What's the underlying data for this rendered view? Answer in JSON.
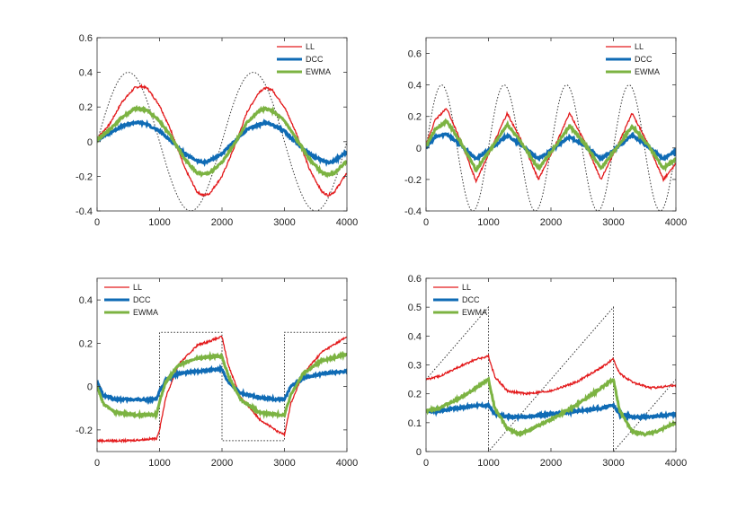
{
  "figure": {
    "background": "#ffffff"
  },
  "colors": {
    "LL": "#e31a1c",
    "DCC": "#0f6bb5",
    "EWMA": "#7cb342",
    "true": "#333333"
  },
  "chart_data": [
    {
      "type": "line",
      "xlim": [
        0,
        4000
      ],
      "ylim": [
        -0.4,
        0.6
      ],
      "xticks": [
        0,
        1000,
        2000,
        3000,
        4000
      ],
      "xtick_labels": [
        "0",
        "1000",
        "2000",
        "3000",
        "4000"
      ],
      "yticks": [
        -0.4,
        -0.2,
        0,
        0.2,
        0.4,
        0.6
      ],
      "ytick_labels": [
        "-0.4",
        "-0.2",
        "0",
        "0.2",
        "0.4",
        "0.6"
      ],
      "legend_position": "top-right",
      "series": [
        {
          "name": "LL",
          "color": "#e31a1c",
          "x": [
            0,
            200,
            400,
            600,
            700,
            800,
            1000,
            1200,
            1400,
            1600,
            1700,
            1800,
            2000,
            2200,
            2400,
            2600,
            2700,
            2800,
            3000,
            3200,
            3400,
            3600,
            3700,
            3800,
            4000
          ],
          "y": [
            0.02,
            0.1,
            0.23,
            0.31,
            0.32,
            0.31,
            0.21,
            0.05,
            -0.15,
            -0.29,
            -0.31,
            -0.3,
            -0.2,
            -0.03,
            0.17,
            0.29,
            0.31,
            0.3,
            0.2,
            0.04,
            -0.16,
            -0.29,
            -0.31,
            -0.29,
            -0.18
          ]
        },
        {
          "name": "DCC",
          "color": "#0f6bb5",
          "x": [
            0,
            200,
            400,
            600,
            700,
            800,
            1000,
            1200,
            1400,
            1600,
            1700,
            1800,
            2000,
            2200,
            2400,
            2600,
            2700,
            2800,
            3000,
            3200,
            3400,
            3600,
            3700,
            3800,
            4000
          ],
          "y": [
            0.01,
            0.05,
            0.09,
            0.11,
            0.11,
            0.1,
            0.06,
            0.0,
            -0.07,
            -0.11,
            -0.12,
            -0.11,
            -0.07,
            0.0,
            0.07,
            0.1,
            0.11,
            0.1,
            0.06,
            -0.01,
            -0.07,
            -0.11,
            -0.12,
            -0.11,
            -0.06
          ]
        },
        {
          "name": "EWMA",
          "color": "#7cb342",
          "x": [
            0,
            200,
            400,
            600,
            700,
            800,
            1000,
            1200,
            1400,
            1600,
            1700,
            1800,
            2000,
            2200,
            2400,
            2600,
            2700,
            2800,
            3000,
            3200,
            3400,
            3600,
            3700,
            3800,
            4000
          ],
          "y": [
            0.01,
            0.07,
            0.14,
            0.19,
            0.19,
            0.18,
            0.12,
            0.02,
            -0.1,
            -0.18,
            -0.19,
            -0.18,
            -0.12,
            -0.01,
            0.11,
            0.18,
            0.19,
            0.18,
            0.12,
            0.01,
            -0.1,
            -0.18,
            -0.19,
            -0.18,
            -0.11
          ]
        },
        {
          "name": "",
          "color": "#333333",
          "dashed": true,
          "x": [
            0,
            500,
            1000,
            1500,
            2000,
            2500,
            3000,
            3500,
            4000
          ],
          "func": "sin",
          "amp": 0.4,
          "period": 2000
        }
      ]
    },
    {
      "type": "line",
      "xlim": [
        0,
        4000
      ],
      "ylim": [
        -0.4,
        0.7
      ],
      "xticks": [
        0,
        1000,
        2000,
        3000,
        4000
      ],
      "xtick_labels": [
        "0",
        "1000",
        "2000",
        "3000",
        "4000"
      ],
      "yticks": [
        -0.4,
        -0.2,
        0,
        0.2,
        0.4,
        0.6
      ],
      "ytick_labels": [
        "-0.4",
        "-0.2",
        "0",
        "0.2",
        "0.4",
        "0.6"
      ],
      "legend_position": "top-right",
      "series": [
        {
          "name": "LL",
          "color": "#e31a1c",
          "x": [
            0,
            150,
            330,
            550,
            800,
            1050,
            1300,
            1550,
            1800,
            2050,
            2300,
            2550,
            2800,
            3050,
            3300,
            3550,
            3800,
            4000
          ],
          "y": [
            0.02,
            0.18,
            0.25,
            0.05,
            -0.21,
            0.0,
            0.22,
            0.03,
            -0.2,
            0.0,
            0.22,
            0.03,
            -0.2,
            0.0,
            0.22,
            0.03,
            -0.2,
            -0.1
          ]
        },
        {
          "name": "DCC",
          "color": "#0f6bb5",
          "x": [
            0,
            150,
            330,
            550,
            800,
            1050,
            1300,
            1550,
            1800,
            2050,
            2300,
            2550,
            2800,
            3050,
            3300,
            3550,
            3800,
            4000
          ],
          "y": [
            0.0,
            0.07,
            0.09,
            0.02,
            -0.07,
            0.0,
            0.08,
            0.01,
            -0.07,
            0.0,
            0.07,
            0.01,
            -0.07,
            0.0,
            0.08,
            0.01,
            -0.07,
            -0.02
          ]
        },
        {
          "name": "EWMA",
          "color": "#7cb342",
          "x": [
            0,
            150,
            330,
            550,
            800,
            1050,
            1300,
            1550,
            1800,
            2050,
            2300,
            2550,
            2800,
            3050,
            3300,
            3550,
            3800,
            4000
          ],
          "y": [
            0.01,
            0.12,
            0.17,
            0.04,
            -0.14,
            0.0,
            0.15,
            0.02,
            -0.13,
            0.0,
            0.14,
            0.02,
            -0.13,
            0.0,
            0.14,
            0.02,
            -0.13,
            -0.07
          ]
        },
        {
          "name": "",
          "color": "#333333",
          "dashed": true,
          "func": "sin",
          "amp": 0.4,
          "period": 1000
        }
      ]
    },
    {
      "type": "line",
      "xlim": [
        0,
        4000
      ],
      "ylim": [
        -0.3,
        0.5
      ],
      "xticks": [
        0,
        1000,
        2000,
        3000,
        4000
      ],
      "xtick_labels": [
        "0",
        "1000",
        "2000",
        "3000",
        "4000"
      ],
      "yticks": [
        -0.2,
        0,
        0.2,
        0.4
      ],
      "ytick_labels": [
        "-0.2",
        "0",
        "0.2",
        "0.4"
      ],
      "legend_position": "top-left",
      "series": [
        {
          "name": "LL",
          "color": "#e31a1c",
          "x": [
            0,
            500,
            950,
            1000,
            1100,
            1300,
            1600,
            1900,
            2000,
            2100,
            2300,
            2600,
            2900,
            3000,
            3100,
            3300,
            3600,
            4000
          ],
          "y": [
            -0.25,
            -0.25,
            -0.24,
            -0.2,
            -0.05,
            0.1,
            0.19,
            0.22,
            0.23,
            0.1,
            -0.05,
            -0.15,
            -0.21,
            -0.22,
            -0.08,
            0.06,
            0.16,
            0.23
          ]
        },
        {
          "name": "DCC",
          "color": "#0f6bb5",
          "x": [
            0,
            100,
            300,
            600,
            950,
            1000,
            1100,
            1300,
            1600,
            1900,
            2000,
            2100,
            2300,
            2600,
            2900,
            3000,
            3100,
            3300,
            3600,
            4000
          ],
          "y": [
            0.02,
            -0.04,
            -0.06,
            -0.06,
            -0.06,
            -0.02,
            0.03,
            0.06,
            0.07,
            0.08,
            0.08,
            0.02,
            -0.03,
            -0.05,
            -0.06,
            -0.06,
            0.0,
            0.04,
            0.06,
            0.07
          ]
        },
        {
          "name": "EWMA",
          "color": "#7cb342",
          "x": [
            0,
            100,
            300,
            600,
            950,
            1000,
            1100,
            1300,
            1600,
            1900,
            2000,
            2100,
            2300,
            2600,
            2900,
            3000,
            3100,
            3300,
            3600,
            4000
          ],
          "y": [
            0.0,
            -0.08,
            -0.12,
            -0.13,
            -0.13,
            -0.07,
            0.02,
            0.1,
            0.13,
            0.14,
            0.14,
            0.05,
            -0.06,
            -0.12,
            -0.13,
            -0.13,
            -0.04,
            0.06,
            0.12,
            0.15
          ]
        },
        {
          "name": "",
          "color": "#333333",
          "dashed": true,
          "x": [
            1000,
            1000,
            2000,
            2000,
            3000,
            3000,
            4000
          ],
          "y": [
            -0.25,
            0.25,
            0.25,
            -0.25,
            -0.25,
            0.25,
            0.25
          ]
        }
      ]
    },
    {
      "type": "line",
      "xlim": [
        0,
        4000
      ],
      "ylim": [
        0,
        0.6
      ],
      "xticks": [
        0,
        1000,
        2000,
        3000,
        4000
      ],
      "xtick_labels": [
        "0",
        "1000",
        "2000",
        "3000",
        "4000"
      ],
      "yticks": [
        0,
        0.1,
        0.2,
        0.3,
        0.4,
        0.5,
        0.6
      ],
      "ytick_labels": [
        "0",
        "0.1",
        "0.2",
        "0.3",
        "0.4",
        "0.5",
        "0.6"
      ],
      "legend_position": "top-left",
      "series": [
        {
          "name": "LL",
          "color": "#e31a1c",
          "x": [
            0,
            200,
            500,
            800,
            1000,
            1100,
            1300,
            1600,
            2000,
            2400,
            2800,
            3000,
            3100,
            3300,
            3600,
            4000
          ],
          "y": [
            0.25,
            0.26,
            0.29,
            0.32,
            0.33,
            0.26,
            0.21,
            0.2,
            0.21,
            0.24,
            0.29,
            0.32,
            0.27,
            0.24,
            0.22,
            0.23
          ]
        },
        {
          "name": "DCC",
          "color": "#0f6bb5",
          "x": [
            0,
            200,
            500,
            800,
            1000,
            1100,
            1300,
            1600,
            2000,
            2400,
            2800,
            3000,
            3100,
            3300,
            3600,
            4000
          ],
          "y": [
            0.14,
            0.14,
            0.15,
            0.16,
            0.16,
            0.13,
            0.12,
            0.12,
            0.13,
            0.14,
            0.15,
            0.16,
            0.13,
            0.12,
            0.12,
            0.13
          ]
        },
        {
          "name": "EWMA",
          "color": "#7cb342",
          "x": [
            0,
            200,
            500,
            800,
            1000,
            1100,
            1300,
            1500,
            1600,
            2000,
            2400,
            2800,
            3000,
            3100,
            3300,
            3500,
            3700,
            4000
          ],
          "y": [
            0.14,
            0.15,
            0.18,
            0.22,
            0.25,
            0.15,
            0.08,
            0.06,
            0.07,
            0.11,
            0.16,
            0.22,
            0.25,
            0.14,
            0.07,
            0.06,
            0.07,
            0.1
          ]
        },
        {
          "name": "",
          "color": "#333333",
          "dashed": true,
          "x": [
            0,
            1000,
            1000,
            3000,
            3000,
            4000
          ],
          "y": [
            0.25,
            0.5,
            0.0,
            0.5,
            0.0,
            0.25
          ]
        }
      ]
    }
  ]
}
